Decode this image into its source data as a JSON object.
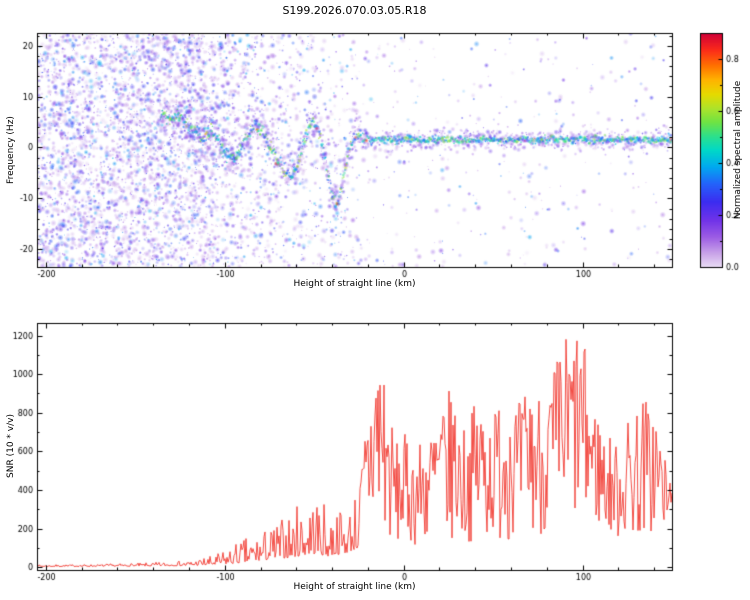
{
  "title": "S199.2026.070.03.05.R18",
  "colors": {
    "background": "#ffffff",
    "axes": "#000000",
    "snr_line": "#f23b32"
  },
  "chart_data": [
    {
      "type": "heatmap",
      "name": "doppler-spectrogram",
      "title": "S199.2026.070.03.05.R18",
      "xlabel": "Height of straight line (km)",
      "ylabel": "Frequency (Hz)",
      "xlim": [
        -205,
        150
      ],
      "ylim": [
        -23.5,
        22.5
      ],
      "xticks": [
        -200,
        -100,
        0,
        100
      ],
      "xtick_minor_step": 20,
      "yticks": [
        -20,
        -10,
        0,
        10,
        20
      ],
      "ytick_minor_step": 2,
      "colorbar": {
        "label": "Normalized spectral amplitude",
        "range": [
          0,
          0.9
        ],
        "ticks": [
          0,
          0.2,
          0.4,
          0.6,
          0.8
        ],
        "minor_step": 0.1,
        "colormap_stops": [
          [
            0.0,
            "#eadcf5"
          ],
          [
            0.06,
            "#c9a3e8"
          ],
          [
            0.13,
            "#9c5ce4"
          ],
          [
            0.2,
            "#7133e8"
          ],
          [
            0.28,
            "#3c2cf0"
          ],
          [
            0.36,
            "#2365fa"
          ],
          [
            0.43,
            "#00a9f0"
          ],
          [
            0.5,
            "#00d8c8"
          ],
          [
            0.56,
            "#2ce08c"
          ],
          [
            0.62,
            "#6ee344"
          ],
          [
            0.68,
            "#aee32a"
          ],
          [
            0.74,
            "#e6da00"
          ],
          [
            0.8,
            "#ffb400"
          ],
          [
            0.86,
            "#ff7300"
          ],
          [
            0.93,
            "#fb2a1a"
          ],
          [
            1.0,
            "#cf0038"
          ]
        ]
      },
      "trace_points": [
        [
          -136,
          7
        ],
        [
          -131,
          5.5
        ],
        [
          -126,
          6.5
        ],
        [
          -121,
          4.5
        ],
        [
          -116,
          3
        ],
        [
          -111,
          2
        ],
        [
          -107,
          3.5
        ],
        [
          -103,
          1
        ],
        [
          -99,
          -1.5
        ],
        [
          -95,
          -2.5
        ],
        [
          -91,
          0
        ],
        [
          -87,
          2.5
        ],
        [
          -83,
          4.5
        ],
        [
          -79,
          3.5
        ],
        [
          -75,
          0.5
        ],
        [
          -71,
          -2
        ],
        [
          -67,
          -4.5
        ],
        [
          -63,
          -6
        ],
        [
          -60,
          -4
        ],
        [
          -57,
          -0.5
        ],
        [
          -54,
          3
        ],
        [
          -51,
          5.5
        ],
        [
          -48,
          3.5
        ],
        [
          -45,
          -0.5
        ],
        [
          -43,
          -4
        ],
        [
          -41,
          -7.5
        ],
        [
          -39,
          -10.5
        ],
        [
          -37,
          -11.5
        ],
        [
          -35,
          -8.5
        ],
        [
          -33,
          -4.5
        ],
        [
          -31,
          -1
        ],
        [
          -28,
          1.5
        ],
        [
          -25,
          2.2
        ],
        [
          -22,
          1.8
        ],
        [
          -18,
          1.4
        ],
        [
          -12,
          1.6
        ],
        [
          -5,
          1.3
        ],
        [
          3,
          1.6
        ],
        [
          12,
          1.4
        ],
        [
          22,
          1.6
        ],
        [
          35,
          1.4
        ],
        [
          50,
          1.6
        ],
        [
          65,
          1.4
        ],
        [
          80,
          1.6
        ],
        [
          95,
          1.4
        ],
        [
          110,
          1.6
        ],
        [
          125,
          1.4
        ],
        [
          140,
          1.5
        ],
        [
          150,
          1.5
        ]
      ],
      "noise": {
        "seed": 42,
        "count": 12000,
        "density_profile": [
          [
            -205,
            0.95
          ],
          [
            -112,
            0.95
          ],
          [
            -95,
            0.55
          ],
          [
            -60,
            0.35
          ],
          [
            -25,
            0.2
          ],
          [
            -18,
            0.07
          ],
          [
            150,
            0.05
          ]
        ]
      }
    },
    {
      "type": "line",
      "name": "snr-profile",
      "xlabel": "Height of straight line (km)",
      "ylabel": "SNR (10 * v/v)",
      "line_color": "#f23b32",
      "xlim": [
        -205,
        150
      ],
      "ylim": [
        -15,
        1265
      ],
      "xticks": [
        -200,
        -100,
        0,
        100
      ],
      "xtick_minor_step": 20,
      "yticks": [
        0,
        200,
        400,
        600,
        800,
        1000,
        1200
      ],
      "ytick_minor_step": 100,
      "seed": 7,
      "envelope": {
        "x": [
          -205,
          -170,
          -145,
          -120,
          -105,
          -95,
          -85,
          -75,
          -68,
          -60,
          -54,
          -48,
          -43,
          -38,
          -33,
          -28,
          -24,
          -20,
          -16,
          -12,
          -8,
          -4,
          0,
          5,
          12,
          20,
          28,
          35,
          42,
          50,
          57,
          64,
          71,
          78,
          85,
          92,
          99,
          106,
          113,
          120,
          127,
          134,
          141,
          148,
          150
        ],
        "low": [
          3,
          4,
          5,
          8,
          12,
          18,
          28,
          40,
          45,
          55,
          65,
          70,
          55,
          65,
          70,
          90,
          100,
          110,
          120,
          130,
          115,
          110,
          125,
          115,
          110,
          125,
          120,
          135,
          125,
          145,
          135,
          155,
          150,
          165,
          160,
          195,
          240,
          215,
          175,
          145,
          130,
          140,
          155,
          170,
          380
        ],
        "high": [
          12,
          15,
          22,
          35,
          65,
          120,
          170,
          210,
          260,
          320,
          430,
          380,
          310,
          330,
          300,
          380,
          500,
          900,
          1240,
          1230,
          820,
          650,
          700,
          620,
          700,
          850,
          950,
          700,
          950,
          800,
          1050,
          850,
          1000,
          900,
          1100,
          1250,
          1260,
          900,
          700,
          650,
          820,
          900,
          850,
          470,
          470
        ]
      }
    }
  ]
}
